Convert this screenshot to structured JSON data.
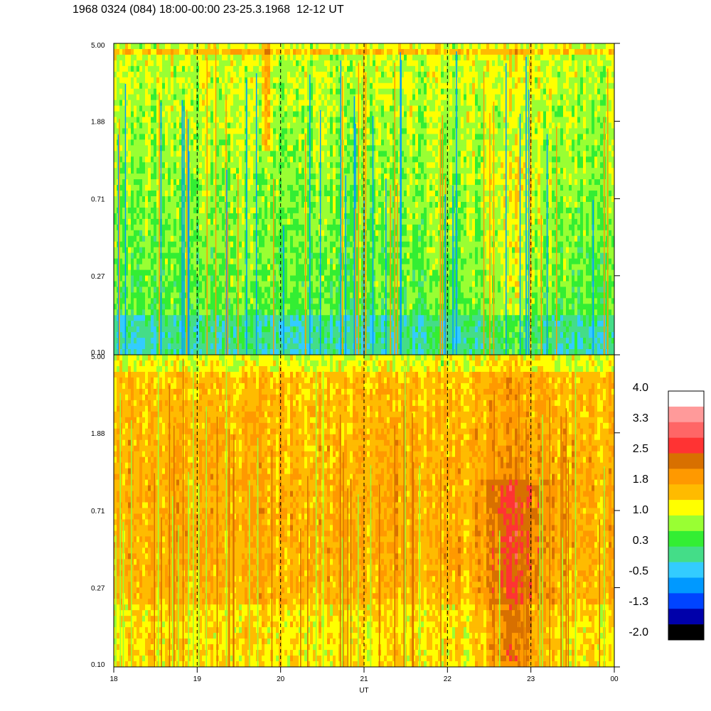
{
  "title": "1968 0324 (084) 18:00-00:00 23-25.3.1968  12-12 UT",
  "chart_data": [
    {
      "type": "heatmap",
      "name": "upper-panel",
      "y_tick_labels": [
        "5.00",
        "1.88",
        "0.71",
        "0.27",
        "0.10"
      ],
      "y_ticks": [
        5.0,
        1.88,
        0.71,
        0.27,
        0.1
      ],
      "ylim": [
        0.1,
        5.0
      ],
      "y_scale": "log",
      "x_tick_labels": [
        "18",
        "19",
        "20",
        "21",
        "22",
        "23",
        "00"
      ],
      "xlim": [
        18,
        24
      ],
      "vertical_dashed_lines_at": [
        19,
        20,
        21,
        22,
        23
      ],
      "dominant_levels": "green/cyan, 0.3 to 1.0, cyan -0.5 near bottom",
      "grid": true
    },
    {
      "type": "heatmap",
      "name": "lower-panel",
      "y_tick_labels": [
        "5.00",
        "1.88",
        "0.71",
        "0.27",
        "0.10"
      ],
      "y_ticks": [
        5.0,
        1.88,
        0.71,
        0.27,
        0.1
      ],
      "ylim": [
        0.1,
        5.0
      ],
      "y_scale": "log",
      "x_tick_labels": [
        "18",
        "19",
        "20",
        "21",
        "22",
        "23",
        "00"
      ],
      "xlim": [
        18,
        24
      ],
      "xlabel": "UT",
      "vertical_dashed_lines_at": [
        19,
        20,
        21,
        22,
        23
      ],
      "dominant_levels": "yellow/orange, 1.0 to 2.5, darker orange near 22-23 UT",
      "grid": true
    }
  ],
  "colorbar": {
    "labels": [
      "4.0",
      "3.3",
      "2.5",
      "1.8",
      "1.0",
      "0.3",
      "-0.5",
      "-1.3",
      "-2.0"
    ],
    "colors": [
      "#ffffff",
      "#ff9a9a",
      "#ff6666",
      "#ff3333",
      "#d87000",
      "#ff9900",
      "#ffbb00",
      "#ffff00",
      "#99ff33",
      "#33ee33",
      "#44dd88",
      "#33ccff",
      "#0099ff",
      "#0044ff",
      "#0000aa",
      "#000000"
    ]
  }
}
